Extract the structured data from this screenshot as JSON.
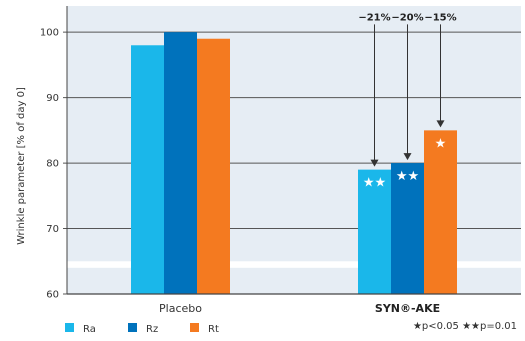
{
  "chart_data": {
    "type": "bar",
    "ylabel": "Wrinkle parameter [% of day 0]",
    "yticks": [
      60,
      70,
      80,
      90,
      100
    ],
    "ylim": [
      60,
      104
    ],
    "grid": true,
    "categories": [
      "Placebo",
      "SYN®-AKE"
    ],
    "categories_bold": [
      false,
      true
    ],
    "series": [
      {
        "name": "Ra",
        "values": [
          98,
          79
        ],
        "color": "#1AB7EA",
        "sig": [
          "",
          "★★"
        ]
      },
      {
        "name": "Rz",
        "values": [
          100,
          80
        ],
        "color": "#0072BC",
        "sig": [
          "",
          "★★"
        ]
      },
      {
        "name": "Rt",
        "values": [
          99,
          85
        ],
        "color": "#F47A20",
        "sig": [
          "",
          "★"
        ]
      }
    ],
    "annotations": [
      {
        "text": "−21%",
        "series": 0,
        "category": 1,
        "from": 101.5
      },
      {
        "text": "−20%",
        "series": 1,
        "category": 1,
        "from": 101.5
      },
      {
        "text": "−15%",
        "series": 2,
        "category": 1,
        "from": 101.5
      }
    ],
    "legend_position": "bottom-left",
    "footnote": "★p<0.05  ★★p=0.01",
    "colors": {
      "plot_bg": "#E6EDF4",
      "plot_band_bg": "#FFFFFF",
      "axis_dark": "#444444",
      "grid": "#555555"
    }
  }
}
